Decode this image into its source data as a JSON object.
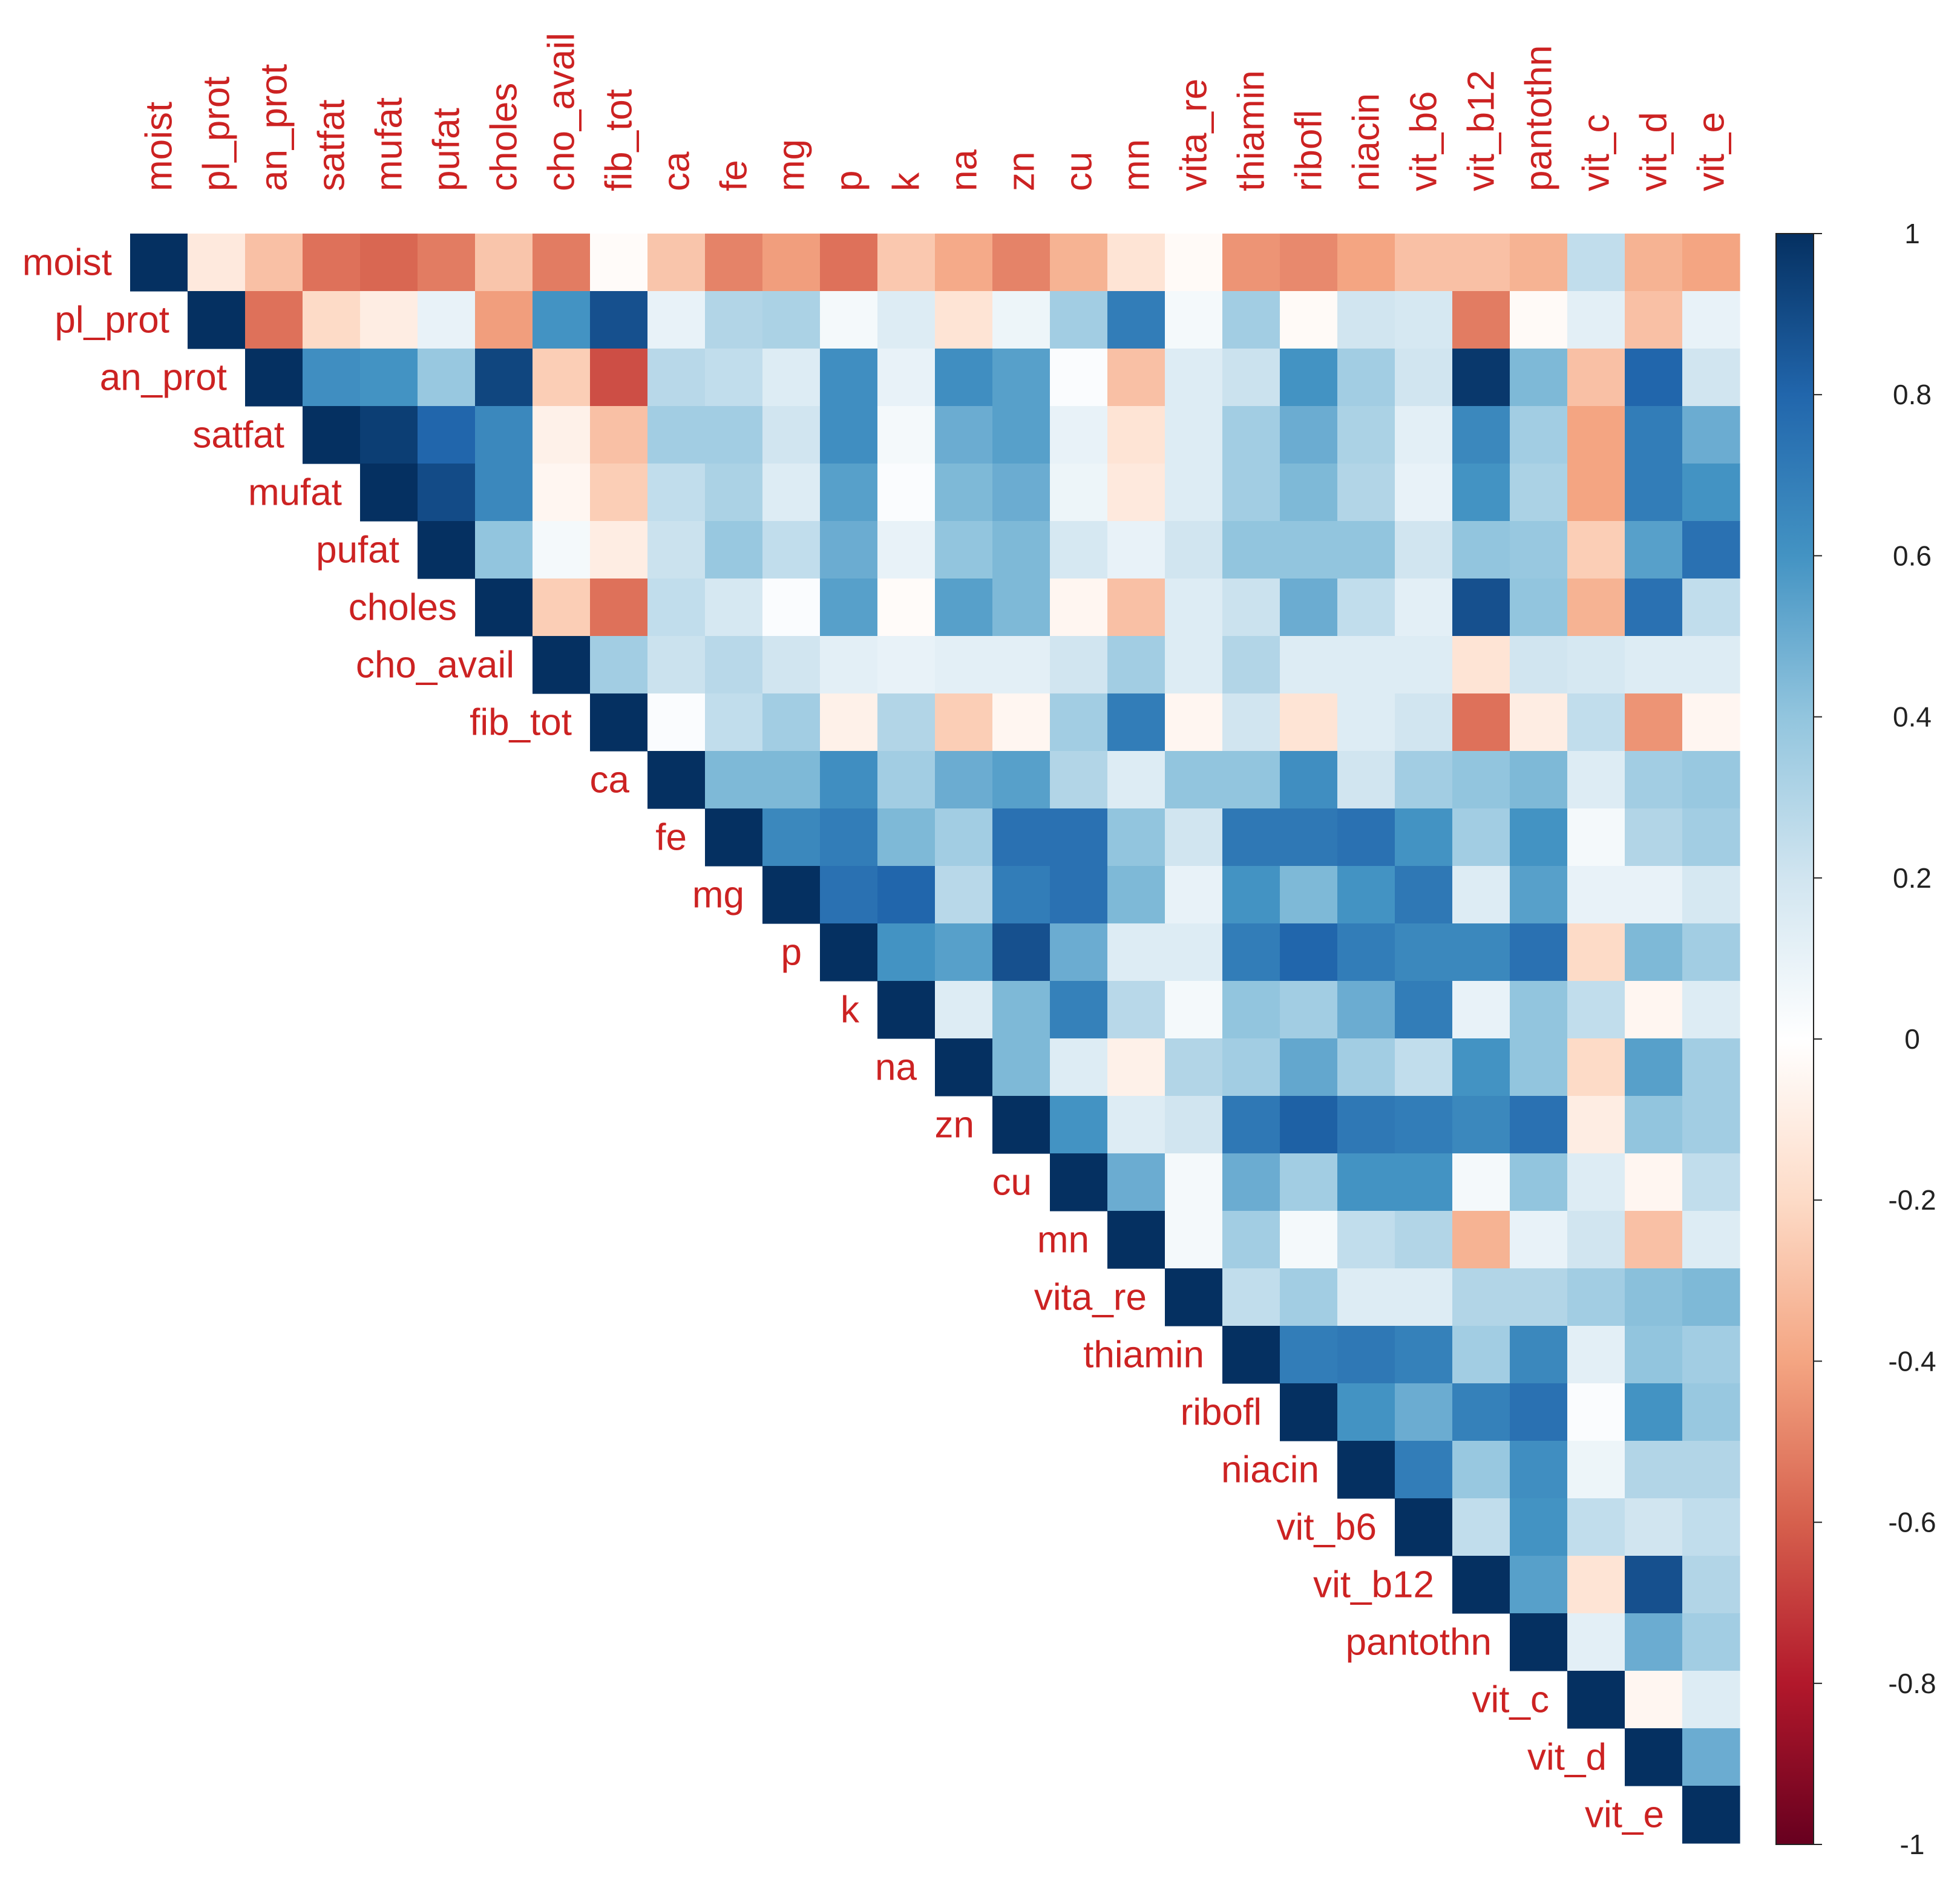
{
  "chart_data": {
    "type": "heatmap",
    "shape": "upper-triangle correlation matrix",
    "variables": [
      "moist",
      "pl_prot",
      "an_prot",
      "satfat",
      "mufat",
      "pufat",
      "choles",
      "cho_avail",
      "fib_tot",
      "ca",
      "fe",
      "mg",
      "p",
      "k",
      "na",
      "zn",
      "cu",
      "mn",
      "vita_re",
      "thiamin",
      "ribofl",
      "niacin",
      "vit_b6",
      "vit_b12",
      "pantothn",
      "vit_c",
      "vit_d",
      "vit_e"
    ],
    "matrix": [
      [
        1,
        -0.12,
        -0.3,
        -0.55,
        -0.58,
        -0.52,
        -0.28,
        -0.52,
        -0.02,
        -0.28,
        -0.5,
        -0.42,
        -0.55,
        -0.27,
        -0.38,
        -0.5,
        -0.35,
        -0.15,
        -0.03,
        -0.45,
        -0.48,
        -0.4,
        -0.3,
        -0.3,
        -0.35,
        0.25,
        -0.35,
        -0.4
      ],
      [
        null,
        1,
        -0.55,
        -0.2,
        -0.1,
        0.1,
        -0.42,
        0.6,
        0.88,
        0.1,
        0.3,
        0.32,
        0.05,
        0.15,
        -0.15,
        0.08,
        0.35,
        0.7,
        0.05,
        0.35,
        -0.03,
        0.2,
        0.18,
        -0.52,
        -0.03,
        0.12,
        -0.3,
        0.1
      ],
      [
        null,
        null,
        1,
        0.62,
        0.6,
        0.38,
        0.92,
        -0.25,
        -0.65,
        0.28,
        0.25,
        0.15,
        0.62,
        0.1,
        0.62,
        0.55,
        0.02,
        -0.3,
        0.15,
        0.22,
        0.6,
        0.35,
        0.2,
        0.97,
        0.45,
        -0.3,
        0.8,
        0.2
      ],
      [
        null,
        null,
        null,
        1,
        0.95,
        0.8,
        0.65,
        -0.08,
        -0.3,
        0.35,
        0.35,
        0.2,
        0.62,
        0.05,
        0.5,
        0.55,
        0.1,
        -0.15,
        0.15,
        0.35,
        0.5,
        0.32,
        0.12,
        0.65,
        0.35,
        -0.4,
        0.7,
        0.5
      ],
      [
        null,
        null,
        null,
        null,
        1,
        0.9,
        0.65,
        -0.05,
        -0.25,
        0.25,
        0.32,
        0.15,
        0.55,
        0.02,
        0.45,
        0.5,
        0.08,
        -0.12,
        0.15,
        0.35,
        0.45,
        0.3,
        0.1,
        0.6,
        0.32,
        -0.4,
        0.7,
        0.6
      ],
      [
        null,
        null,
        null,
        null,
        null,
        1,
        0.4,
        0.05,
        -0.1,
        0.22,
        0.38,
        0.25,
        0.5,
        0.1,
        0.4,
        0.45,
        0.18,
        0.1,
        0.2,
        0.4,
        0.4,
        0.4,
        0.2,
        0.4,
        0.38,
        -0.25,
        0.55,
        0.75
      ],
      [
        null,
        null,
        null,
        null,
        null,
        null,
        1,
        -0.25,
        -0.55,
        0.25,
        0.18,
        0.02,
        0.55,
        -0.02,
        0.55,
        0.45,
        -0.05,
        -0.3,
        0.15,
        0.22,
        0.5,
        0.25,
        0.12,
        0.88,
        0.4,
        -0.35,
        0.75,
        0.25
      ],
      [
        null,
        null,
        null,
        null,
        null,
        null,
        null,
        1,
        0.35,
        0.22,
        0.28,
        0.2,
        0.12,
        0.1,
        0.12,
        0.12,
        0.2,
        0.35,
        0.15,
        0.3,
        0.15,
        0.15,
        0.15,
        -0.15,
        0.2,
        0.18,
        0.15,
        0.15
      ],
      [
        null,
        null,
        null,
        null,
        null,
        null,
        null,
        null,
        1,
        0.02,
        0.25,
        0.35,
        -0.08,
        0.3,
        -0.25,
        -0.05,
        0.35,
        0.7,
        -0.05,
        0.2,
        -0.15,
        0.15,
        0.2,
        -0.55,
        -0.1,
        0.25,
        -0.45,
        -0.05
      ],
      [
        null,
        null,
        null,
        null,
        null,
        null,
        null,
        null,
        null,
        1,
        0.45,
        0.45,
        0.62,
        0.35,
        0.5,
        0.55,
        0.3,
        0.15,
        0.4,
        0.4,
        0.62,
        0.2,
        0.35,
        0.4,
        0.45,
        0.15,
        0.35,
        0.38
      ],
      [
        null,
        null,
        null,
        null,
        null,
        null,
        null,
        null,
        null,
        null,
        1,
        0.65,
        0.7,
        0.45,
        0.35,
        0.75,
        0.75,
        0.4,
        0.2,
        0.72,
        0.72,
        0.75,
        0.6,
        0.35,
        0.6,
        0.05,
        0.3,
        0.35
      ],
      [
        null,
        null,
        null,
        null,
        null,
        null,
        null,
        null,
        null,
        null,
        null,
        1,
        0.75,
        0.8,
        0.28,
        0.7,
        0.75,
        0.45,
        0.1,
        0.6,
        0.45,
        0.6,
        0.72,
        0.15,
        0.55,
        0.1,
        0.1,
        0.18
      ],
      [
        null,
        null,
        null,
        null,
        null,
        null,
        null,
        null,
        null,
        null,
        null,
        null,
        1,
        0.6,
        0.55,
        0.88,
        0.5,
        0.15,
        0.15,
        0.7,
        0.8,
        0.7,
        0.65,
        0.65,
        0.75,
        -0.2,
        0.45,
        0.35
      ],
      [
        null,
        null,
        null,
        null,
        null,
        null,
        null,
        null,
        null,
        null,
        null,
        null,
        null,
        1,
        0.15,
        0.45,
        0.68,
        0.28,
        0.05,
        0.4,
        0.35,
        0.5,
        0.7,
        0.1,
        0.4,
        0.25,
        -0.05,
        0.15
      ],
      [
        null,
        null,
        null,
        null,
        null,
        null,
        null,
        null,
        null,
        null,
        null,
        null,
        null,
        null,
        1,
        0.45,
        0.15,
        -0.08,
        0.3,
        0.35,
        0.52,
        0.35,
        0.25,
        0.6,
        0.4,
        -0.2,
        0.55,
        0.35
      ],
      [
        null,
        null,
        null,
        null,
        null,
        null,
        null,
        null,
        null,
        null,
        null,
        null,
        null,
        null,
        null,
        1,
        0.6,
        0.15,
        0.2,
        0.72,
        0.82,
        0.72,
        0.7,
        0.65,
        0.75,
        -0.1,
        0.4,
        0.35
      ],
      [
        null,
        null,
        null,
        null,
        null,
        null,
        null,
        null,
        null,
        null,
        null,
        null,
        null,
        null,
        null,
        null,
        1,
        0.5,
        0.05,
        0.5,
        0.35,
        0.6,
        0.6,
        0.05,
        0.4,
        0.15,
        -0.05,
        0.25
      ],
      [
        null,
        null,
        null,
        null,
        null,
        null,
        null,
        null,
        null,
        null,
        null,
        null,
        null,
        null,
        null,
        null,
        null,
        1,
        0.05,
        0.35,
        0.05,
        0.25,
        0.3,
        -0.35,
        0.1,
        0.2,
        -0.3,
        0.15
      ],
      [
        null,
        null,
        null,
        null,
        null,
        null,
        null,
        null,
        null,
        null,
        null,
        null,
        null,
        null,
        null,
        null,
        null,
        null,
        1,
        0.25,
        0.35,
        0.15,
        0.15,
        0.3,
        0.3,
        0.35,
        0.42,
        0.45
      ],
      [
        null,
        null,
        null,
        null,
        null,
        null,
        null,
        null,
        null,
        null,
        null,
        null,
        null,
        null,
        null,
        null,
        null,
        null,
        null,
        1,
        0.7,
        0.72,
        0.68,
        0.35,
        0.65,
        0.12,
        0.4,
        0.35
      ],
      [
        null,
        null,
        null,
        null,
        null,
        null,
        null,
        null,
        null,
        null,
        null,
        null,
        null,
        null,
        null,
        null,
        null,
        null,
        null,
        null,
        1,
        0.6,
        0.5,
        0.68,
        0.75,
        0.02,
        0.6,
        0.38
      ],
      [
        null,
        null,
        null,
        null,
        null,
        null,
        null,
        null,
        null,
        null,
        null,
        null,
        null,
        null,
        null,
        null,
        null,
        null,
        null,
        null,
        null,
        1,
        0.7,
        0.38,
        0.62,
        0.08,
        0.3,
        0.3
      ],
      [
        null,
        null,
        null,
        null,
        null,
        null,
        null,
        null,
        null,
        null,
        null,
        null,
        null,
        null,
        null,
        null,
        null,
        null,
        null,
        null,
        null,
        null,
        1,
        0.25,
        0.6,
        0.25,
        0.2,
        0.25
      ],
      [
        null,
        null,
        null,
        null,
        null,
        null,
        null,
        null,
        null,
        null,
        null,
        null,
        null,
        null,
        null,
        null,
        null,
        null,
        null,
        null,
        null,
        null,
        null,
        1,
        0.55,
        -0.15,
        0.88,
        0.3
      ],
      [
        null,
        null,
        null,
        null,
        null,
        null,
        null,
        null,
        null,
        null,
        null,
        null,
        null,
        null,
        null,
        null,
        null,
        null,
        null,
        null,
        null,
        null,
        null,
        null,
        1,
        0.12,
        0.5,
        0.35
      ],
      [
        null,
        null,
        null,
        null,
        null,
        null,
        null,
        null,
        null,
        null,
        null,
        null,
        null,
        null,
        null,
        null,
        null,
        null,
        null,
        null,
        null,
        null,
        null,
        null,
        null,
        1,
        -0.05,
        0.15
      ],
      [
        null,
        null,
        null,
        null,
        null,
        null,
        null,
        null,
        null,
        null,
        null,
        null,
        null,
        null,
        null,
        null,
        null,
        null,
        null,
        null,
        null,
        null,
        null,
        null,
        null,
        null,
        1,
        0.5
      ],
      [
        null,
        null,
        null,
        null,
        null,
        null,
        null,
        null,
        null,
        null,
        null,
        null,
        null,
        null,
        null,
        null,
        null,
        null,
        null,
        null,
        null,
        null,
        null,
        null,
        null,
        null,
        null,
        1
      ]
    ],
    "colorbar": {
      "range": [
        -1,
        1
      ],
      "ticks": [
        "1",
        "0.8",
        "0.6",
        "0.4",
        "0.2",
        "0",
        "-0.2",
        "-0.4",
        "-0.6",
        "-0.8",
        "-1"
      ],
      "palette": [
        "#67001f",
        "#b2182b",
        "#d6604d",
        "#f4a582",
        "#fddbc7",
        "#ffffff",
        "#d1e5f0",
        "#92c5de",
        "#4393c3",
        "#2166ac",
        "#053061"
      ]
    },
    "label_color": "#cc2222"
  }
}
